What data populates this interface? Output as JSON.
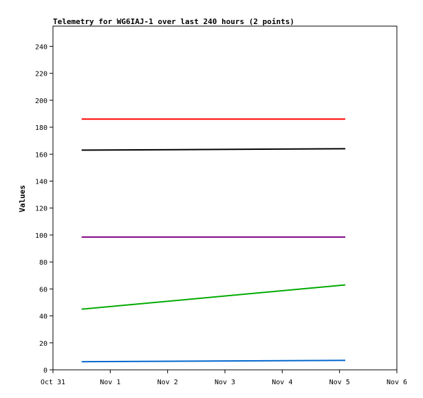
{
  "chart_data": {
    "type": "line",
    "title": "Telemetry for WG6IAJ-1 over last 240 hours (2 points)",
    "xlabel": "",
    "ylabel": "Values",
    "x_tick_labels": [
      "Oct 31",
      "Nov 1",
      "Nov 2",
      "Nov 3",
      "Nov 4",
      "Nov 5",
      "Nov 6"
    ],
    "x_range_days": [
      0,
      6
    ],
    "ylim": [
      0,
      255
    ],
    "y_ticks": [
      0,
      20,
      40,
      60,
      80,
      100,
      120,
      140,
      160,
      180,
      200,
      220,
      240
    ],
    "grid": false,
    "legend": "none",
    "x": [
      0.5,
      5.1
    ],
    "series": [
      {
        "color": "#ff0000",
        "values": [
          186,
          186
        ]
      },
      {
        "color": "#000000",
        "values": [
          163,
          164
        ]
      },
      {
        "color": "#800080",
        "values": [
          98.5,
          98.5
        ]
      },
      {
        "color": "#00aa00",
        "values": [
          45,
          63
        ]
      },
      {
        "color": "#0066cc",
        "values": [
          6,
          7
        ]
      }
    ]
  }
}
